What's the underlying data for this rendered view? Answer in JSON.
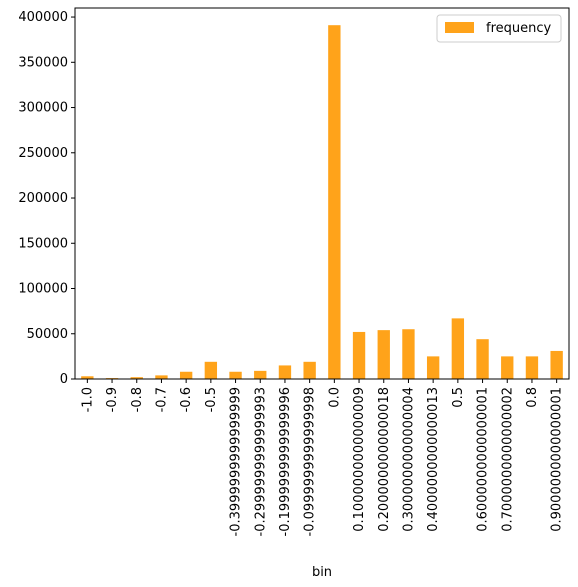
{
  "chart_data": {
    "type": "bar",
    "title": "",
    "xlabel": "bin",
    "ylabel": "",
    "ylim": [
      0,
      410000
    ],
    "yticks": [
      0,
      50000,
      100000,
      150000,
      200000,
      250000,
      300000,
      350000,
      400000
    ],
    "grid": false,
    "legend_position": "top-right",
    "color": "#ffa31a",
    "categories": [
      "-1.0",
      "-0.9",
      "-0.8",
      "-0.7",
      "-0.6",
      "-0.5",
      "-0.3999999999999999",
      "-0.2999999999999993",
      "-0.1999999999999996",
      "-0.0999999999999998",
      "0.0",
      "0.1000000000000009",
      "0.2000000000000018",
      "0.3000000000000004",
      "0.4000000000000013",
      "0.5",
      "0.6000000000000001",
      "0.7000000000000002",
      "0.8",
      "0.9000000000000001"
    ],
    "series": [
      {
        "name": "frequency",
        "values": [
          3000,
          1000,
          2000,
          4000,
          8000,
          19000,
          8000,
          9000,
          15000,
          19000,
          391000,
          52000,
          54000,
          55000,
          25000,
          67000,
          44000,
          25000,
          25000,
          31000
        ]
      }
    ]
  }
}
